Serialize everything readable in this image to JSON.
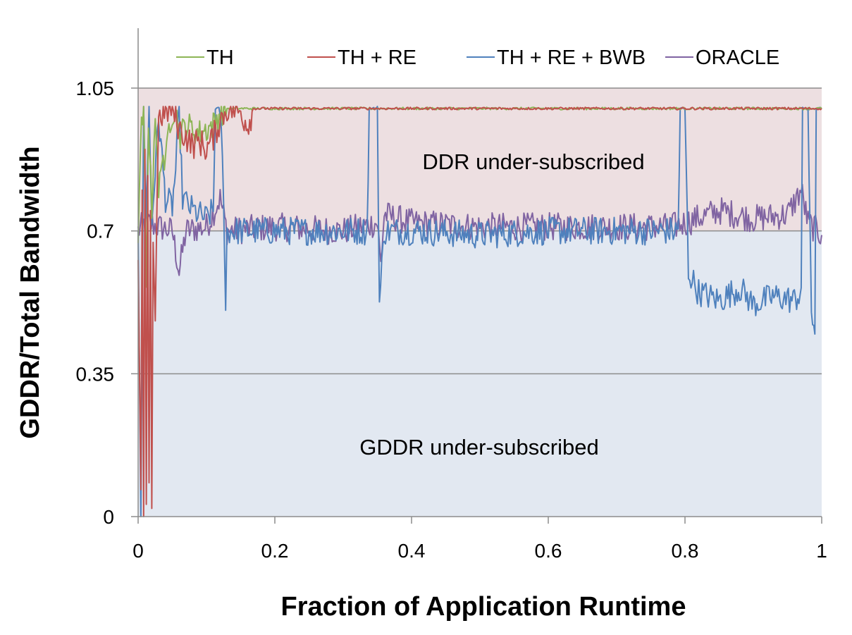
{
  "chart_data": {
    "type": "line",
    "title": "",
    "xlabel": "Fraction of Application Runtime",
    "ylabel": "GDDR/Total Bandwidth",
    "xlim": [
      0,
      1
    ],
    "ylim": [
      0,
      1.05
    ],
    "x_ticks": [
      "0",
      "0.2",
      "0.4",
      "0.6",
      "0.8",
      "1"
    ],
    "y_ticks": [
      "0",
      "0.35",
      "0.7",
      "1.05"
    ],
    "grid": "horizontal",
    "legend_position": "top",
    "regions": [
      {
        "label": "DDR under-subscribed",
        "from": 0.7,
        "to": 1.05,
        "color": "#eddfe1"
      },
      {
        "label": "GDDR under-subscribed",
        "from": 0,
        "to": 0.7,
        "color": "#e2e8f1"
      }
    ],
    "series": [
      {
        "name": "TH",
        "color": "#8db556",
        "points": [
          [
            0,
            0.7
          ],
          [
            0.005,
            0.95
          ],
          [
            0.008,
            1.0
          ],
          [
            0.012,
            0.55
          ],
          [
            0.015,
            0.98
          ],
          [
            0.02,
            0.75
          ],
          [
            0.025,
            1.0
          ],
          [
            0.03,
            0.78
          ],
          [
            0.035,
            0.9
          ],
          [
            0.04,
            0.85
          ],
          [
            0.045,
            0.96
          ],
          [
            0.05,
            0.99
          ],
          [
            0.055,
            1.0
          ],
          [
            0.06,
            0.93
          ],
          [
            0.07,
            0.96
          ],
          [
            0.08,
            0.95
          ],
          [
            0.09,
            0.94
          ],
          [
            0.1,
            0.95
          ],
          [
            0.11,
            0.96
          ],
          [
            0.12,
            0.99
          ],
          [
            0.13,
            1.0
          ],
          [
            0.15,
            1.0
          ],
          [
            0.2,
            1.0
          ],
          [
            0.4,
            1.0
          ],
          [
            0.6,
            1.0
          ],
          [
            0.8,
            1.0
          ],
          [
            1.0,
            1.0
          ]
        ]
      },
      {
        "name": "TH + RE",
        "color": "#c0504d",
        "points": [
          [
            0,
            0.65
          ],
          [
            0.004,
            0.05
          ],
          [
            0.006,
            0.8
          ],
          [
            0.008,
            0.0
          ],
          [
            0.01,
            0.9
          ],
          [
            0.012,
            0.03
          ],
          [
            0.014,
            0.85
          ],
          [
            0.016,
            0.05
          ],
          [
            0.018,
            0.75
          ],
          [
            0.02,
            0.02
          ],
          [
            0.022,
            0.7
          ],
          [
            0.025,
            0.48
          ],
          [
            0.028,
            0.82
          ],
          [
            0.03,
            0.98
          ],
          [
            0.04,
            0.99
          ],
          [
            0.05,
            1.0
          ],
          [
            0.06,
            0.95
          ],
          [
            0.07,
            0.93
          ],
          [
            0.08,
            0.91
          ],
          [
            0.09,
            0.92
          ],
          [
            0.1,
            0.9
          ],
          [
            0.11,
            0.93
          ],
          [
            0.12,
            0.97
          ],
          [
            0.13,
            1.0
          ],
          [
            0.15,
            0.99
          ],
          [
            0.16,
            0.96
          ],
          [
            0.17,
            1.0
          ],
          [
            0.2,
            1.0
          ],
          [
            0.4,
            1.0
          ],
          [
            0.6,
            1.0
          ],
          [
            0.8,
            1.0
          ],
          [
            1.0,
            1.0
          ]
        ]
      },
      {
        "name": "TH + RE + BWB",
        "color": "#4f81bd",
        "points": [
          [
            0,
            0.7
          ],
          [
            0.004,
            0.0
          ],
          [
            0.008,
            1.0
          ],
          [
            0.012,
            0.75
          ],
          [
            0.016,
            1.0
          ],
          [
            0.02,
            0.72
          ],
          [
            0.03,
            0.98
          ],
          [
            0.04,
            0.78
          ],
          [
            0.05,
            0.76
          ],
          [
            0.055,
            0.85
          ],
          [
            0.06,
            1.0
          ],
          [
            0.065,
            0.78
          ],
          [
            0.08,
            0.75
          ],
          [
            0.1,
            0.73
          ],
          [
            0.11,
            0.75
          ],
          [
            0.113,
            1.0
          ],
          [
            0.12,
            1.0
          ],
          [
            0.125,
            0.8
          ],
          [
            0.128,
            0.5
          ],
          [
            0.13,
            0.7
          ],
          [
            0.2,
            0.7
          ],
          [
            0.3,
            0.7
          ],
          [
            0.335,
            0.7
          ],
          [
            0.338,
            1.0
          ],
          [
            0.35,
            1.0
          ],
          [
            0.353,
            0.52
          ],
          [
            0.36,
            0.7
          ],
          [
            0.4,
            0.7
          ],
          [
            0.5,
            0.69
          ],
          [
            0.6,
            0.7
          ],
          [
            0.7,
            0.7
          ],
          [
            0.79,
            0.7
          ],
          [
            0.793,
            1.0
          ],
          [
            0.8,
            1.0
          ],
          [
            0.805,
            0.6
          ],
          [
            0.82,
            0.55
          ],
          [
            0.85,
            0.53
          ],
          [
            0.88,
            0.56
          ],
          [
            0.9,
            0.52
          ],
          [
            0.93,
            0.54
          ],
          [
            0.96,
            0.53
          ],
          [
            0.97,
            0.55
          ],
          [
            0.972,
            1.0
          ],
          [
            0.98,
            1.0
          ],
          [
            0.985,
            0.48
          ],
          [
            0.99,
            0.47
          ],
          [
            0.992,
            1.0
          ],
          [
            1.0,
            1.0
          ]
        ]
      },
      {
        "name": "ORACLE",
        "color": "#8064a2",
        "points": [
          [
            0,
            0.7
          ],
          [
            0.01,
            0.72
          ],
          [
            0.05,
            0.7
          ],
          [
            0.06,
            0.6
          ],
          [
            0.07,
            0.7
          ],
          [
            0.1,
            0.71
          ],
          [
            0.12,
            0.78
          ],
          [
            0.13,
            0.7
          ],
          [
            0.2,
            0.71
          ],
          [
            0.3,
            0.7
          ],
          [
            0.35,
            0.72
          ],
          [
            0.355,
            0.62
          ],
          [
            0.36,
            0.74
          ],
          [
            0.4,
            0.72
          ],
          [
            0.5,
            0.71
          ],
          [
            0.6,
            0.71
          ],
          [
            0.7,
            0.71
          ],
          [
            0.78,
            0.71
          ],
          [
            0.8,
            0.72
          ],
          [
            0.85,
            0.75
          ],
          [
            0.9,
            0.73
          ],
          [
            0.95,
            0.74
          ],
          [
            0.97,
            0.8
          ],
          [
            0.98,
            0.72
          ],
          [
            1.0,
            0.69
          ]
        ]
      }
    ]
  }
}
